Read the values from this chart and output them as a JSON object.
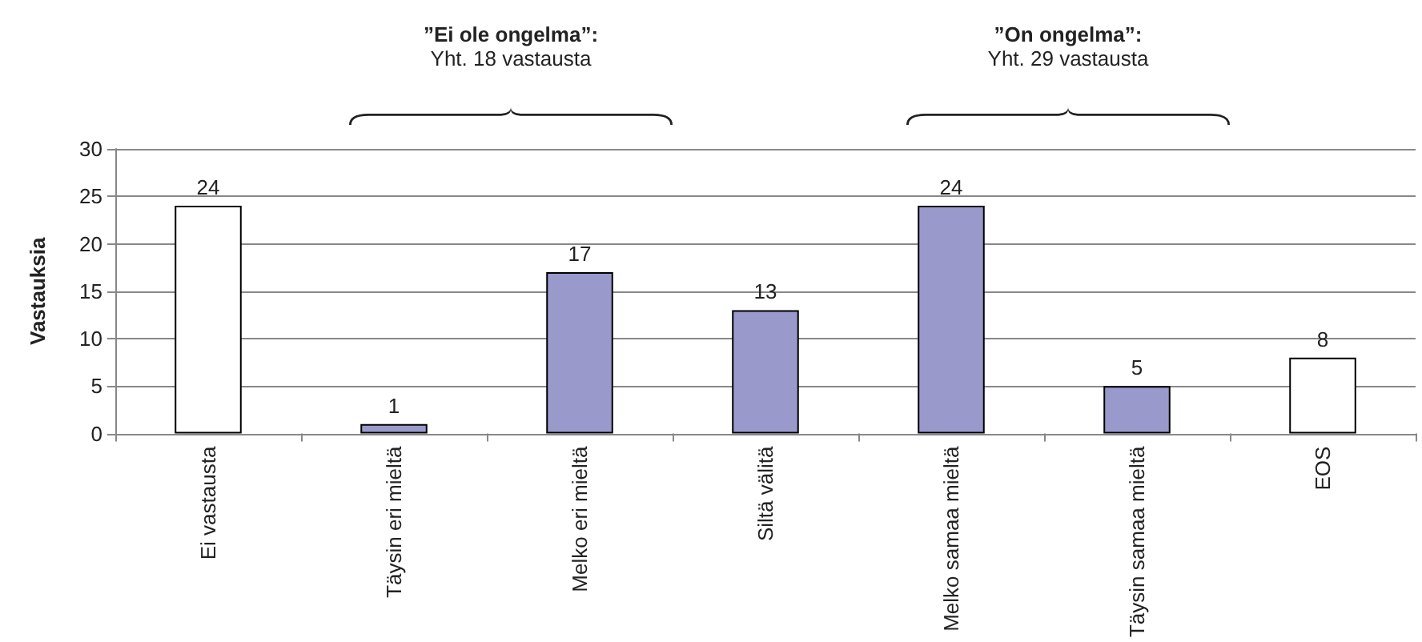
{
  "chart_data": {
    "type": "bar",
    "ylabel": "Vastauksia",
    "categories": [
      "Ei vastausta",
      "Täysin eri mieltä",
      "Melko eri mieltä",
      "Siltä välitä",
      "Melko samaa mieltä",
      "Täysin samaa mieltä",
      "EOS"
    ],
    "values": [
      24,
      1,
      17,
      13,
      24,
      5,
      8
    ],
    "colors": [
      "#ffffff",
      "#9999cc",
      "#9999cc",
      "#9999cc",
      "#9999cc",
      "#9999cc",
      "#ffffff"
    ],
    "ylim": [
      0,
      30
    ],
    "yticks": [
      0,
      5,
      10,
      15,
      20,
      25,
      30
    ],
    "grid": "y",
    "data_labels": true,
    "annotations": [
      "”Ei ole ongelma”:",
      "Yht. 18 vastausta",
      "”On ongelma”:",
      "Yht. 29 vastausta"
    ]
  }
}
